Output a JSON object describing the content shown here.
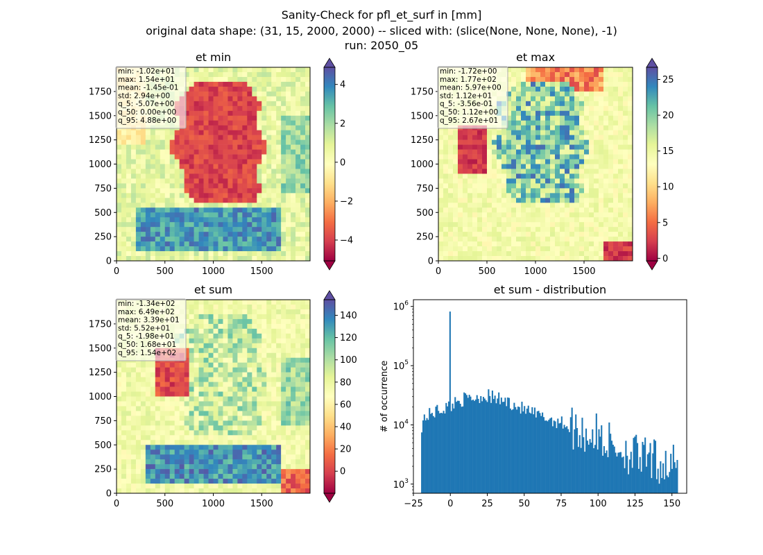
{
  "suptitle": {
    "line1": "Sanity-Check for pfl_et_surf in [mm]",
    "line2": "original data shape: (31, 15, 2000, 2000) -- sliced with: (slice(None, None, None), -1)",
    "line3": "run: 2050_05"
  },
  "chart_data": [
    {
      "type": "heatmap",
      "title": "et min",
      "colormap": "Spectral",
      "x_ticks": [
        0,
        500,
        1000,
        1500
      ],
      "y_ticks": [
        0,
        250,
        500,
        750,
        1000,
        1250,
        1500,
        1750
      ],
      "xlim": [
        0,
        2000
      ],
      "ylim": [
        0,
        2000
      ],
      "colorbar": {
        "range": [
          -5.07,
          4.88
        ],
        "ticks": [
          -4,
          -2,
          0,
          2,
          4
        ],
        "tick_labels": [
          "−4",
          "−2",
          "0",
          "2",
          "4"
        ],
        "extend": "both"
      },
      "stats": [
        "min: -1.02e+01",
        "max: 1.54e+01",
        "mean: -1.45e-01",
        "std: 2.94e+00",
        "q_5: -5.07e+00",
        "q_50: 0.00e+00",
        "q_95: 4.88e+00"
      ]
    },
    {
      "type": "heatmap",
      "title": "et max",
      "colormap": "Spectral",
      "x_ticks": [
        0,
        500,
        1000,
        1500
      ],
      "y_ticks": [
        0,
        250,
        500,
        750,
        1000,
        1250,
        1500,
        1750
      ],
      "xlim": [
        0,
        2000
      ],
      "ylim": [
        0,
        2000
      ],
      "colorbar": {
        "range": [
          -0.356,
          26.7
        ],
        "ticks": [
          0,
          5,
          10,
          15,
          20,
          25
        ],
        "tick_labels": [
          "0",
          "5",
          "10",
          "15",
          "20",
          "25"
        ],
        "extend": "both"
      },
      "stats": [
        "min: -1.72e+00",
        "max: 1.77e+02",
        "mean: 5.97e+00",
        "std: 1.12e+01",
        "q_5: -3.56e-01",
        "q_50: 1.12e+00",
        "q_95: 2.67e+01"
      ]
    },
    {
      "type": "heatmap",
      "title": "et sum",
      "colormap": "Spectral",
      "x_ticks": [
        0,
        500,
        1000,
        1500
      ],
      "y_ticks": [
        0,
        250,
        500,
        750,
        1000,
        1250,
        1500,
        1750
      ],
      "xlim": [
        0,
        2000
      ],
      "ylim": [
        0,
        2000
      ],
      "colorbar": {
        "range": [
          -19.8,
          154
        ],
        "ticks": [
          0,
          20,
          40,
          60,
          80,
          100,
          120,
          140
        ],
        "tick_labels": [
          "0",
          "20",
          "40",
          "60",
          "80",
          "100",
          "120",
          "140"
        ],
        "extend": "both"
      },
      "stats": [
        "min: -1.34e+02",
        "max: 6.49e+02",
        "mean: 3.39e+01",
        "std: 5.52e+01",
        "q_5: -1.98e+01",
        "q_50: 1.68e+01",
        "q_95: 1.54e+02"
      ]
    },
    {
      "type": "bar",
      "title": "et sum - distribution",
      "ylabel": "# of occurrence",
      "yscale": "log",
      "xlim": [
        -25,
        160
      ],
      "ylim": [
        700,
        1300000
      ],
      "x_ticks": [
        -25,
        0,
        25,
        50,
        75,
        100,
        125,
        150
      ],
      "x_tick_labels": [
        "−25",
        "0",
        "25",
        "50",
        "75",
        "100",
        "125",
        "150"
      ],
      "y_ticks": [
        1000,
        10000,
        100000,
        1000000
      ],
      "y_tick_bases": [
        "10",
        "10",
        "10",
        "10"
      ],
      "y_tick_exps": [
        "3",
        "4",
        "5",
        "6"
      ],
      "bar_color": "#1f77b4",
      "x_range": [
        -19.8,
        154
      ],
      "spike": {
        "x": 0,
        "count": 820000
      },
      "anchor_counts": [
        [
          -19.8,
          9000
        ],
        [
          -18,
          13000
        ],
        [
          -10,
          17000
        ],
        [
          0,
          21000
        ],
        [
          5,
          26000
        ],
        [
          10,
          27000
        ],
        [
          20,
          30000
        ],
        [
          25,
          31000
        ],
        [
          30,
          28000
        ],
        [
          40,
          24000
        ],
        [
          50,
          18000
        ],
        [
          60,
          14000
        ],
        [
          75,
          11000
        ],
        [
          90,
          7500
        ],
        [
          100,
          6500
        ],
        [
          110,
          4500
        ],
        [
          120,
          3500
        ],
        [
          130,
          2700
        ],
        [
          140,
          2300
        ],
        [
          150,
          2100
        ],
        [
          154,
          2000
        ]
      ]
    }
  ]
}
